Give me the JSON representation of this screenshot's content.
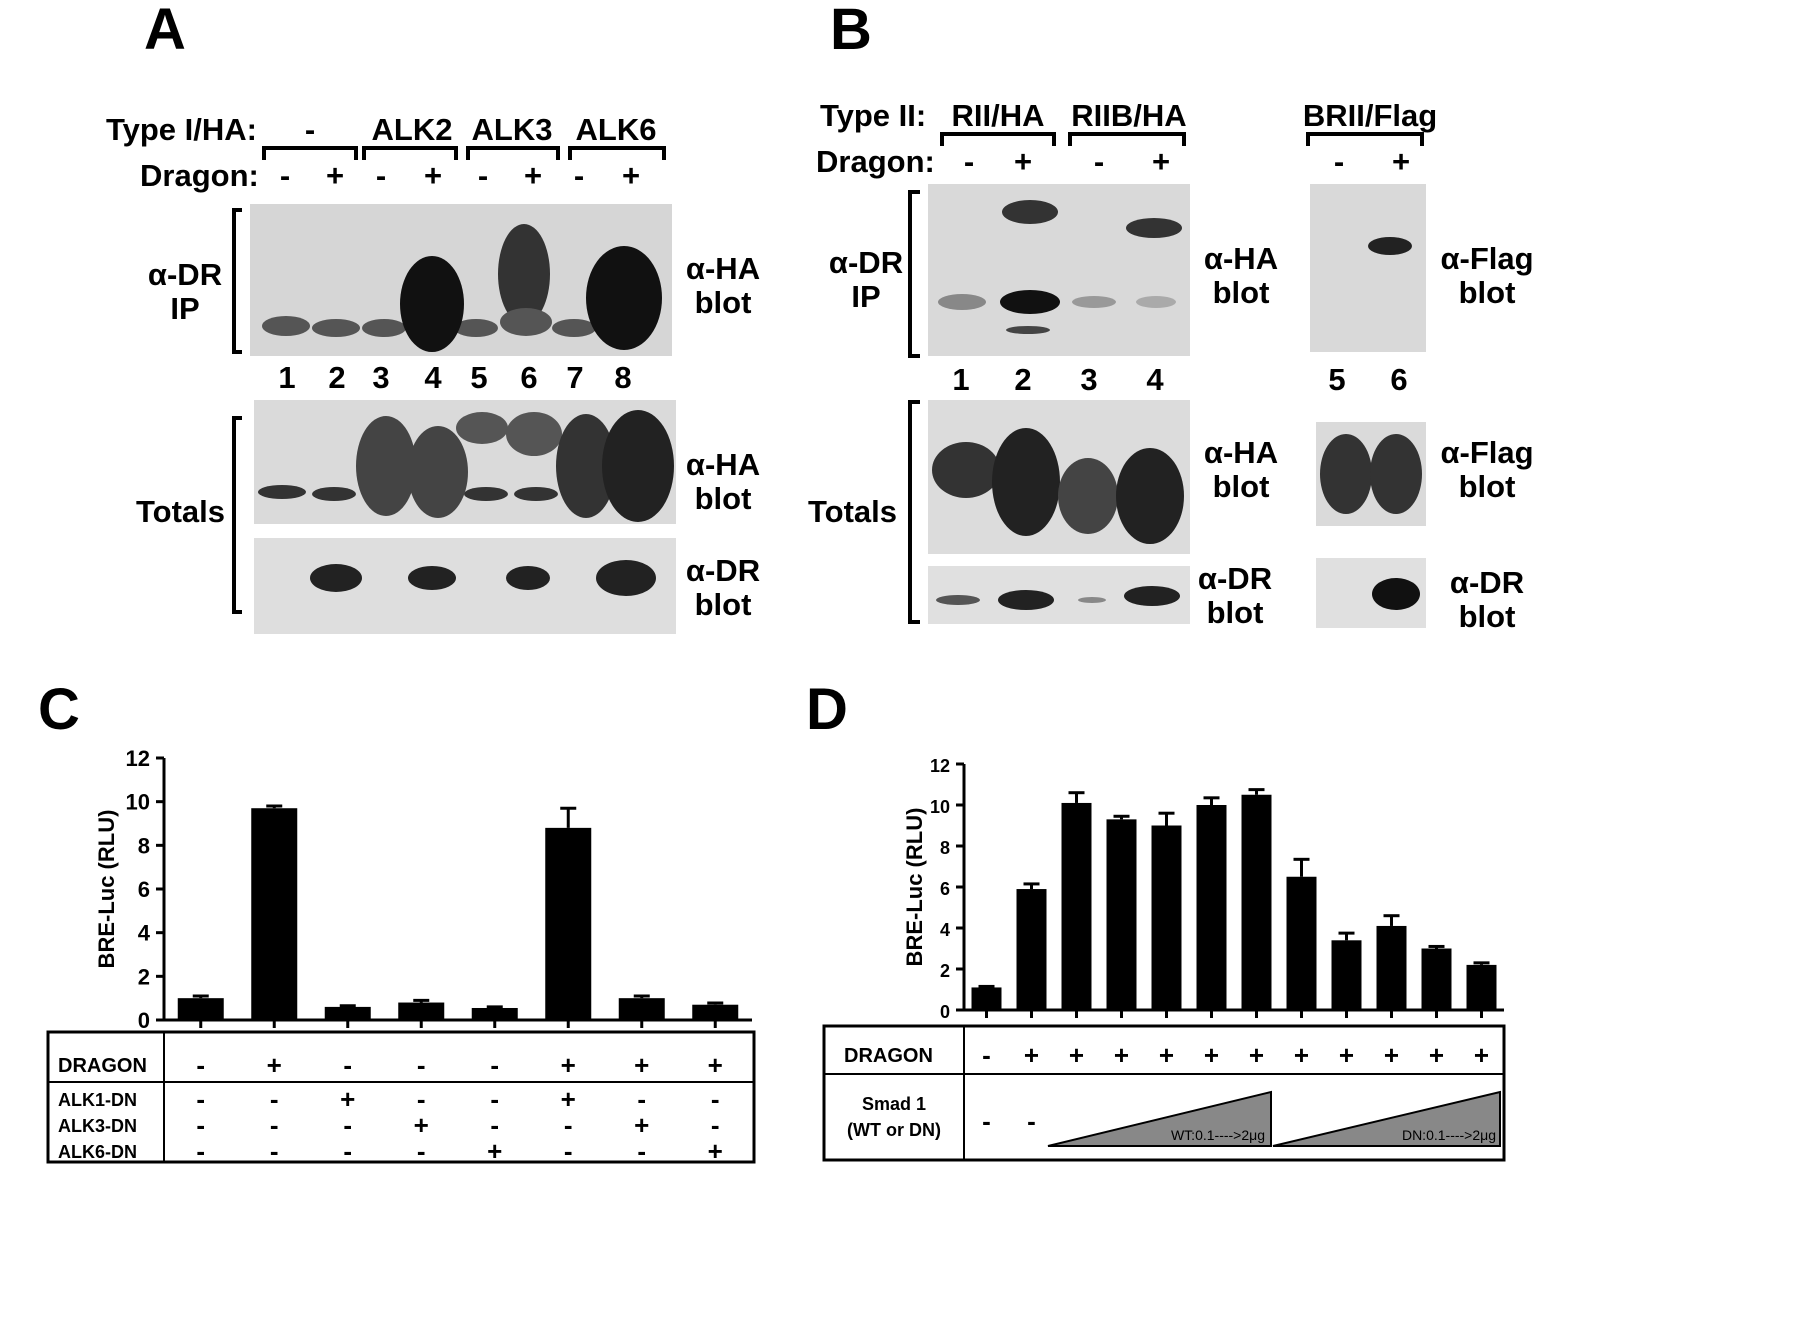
{
  "panels": {
    "A": {
      "letter": "A",
      "type_label": "Type I/HA:",
      "groups": [
        "-",
        "ALK2",
        "ALK3",
        "ALK6"
      ],
      "dragon_label": "Dragon:",
      "dragon_signs": [
        "-",
        "+",
        "-",
        "+",
        "-",
        "+",
        "-",
        "+"
      ],
      "ip_label_1": "α-DR",
      "ip_label_2": "IP",
      "lanes": [
        "1",
        "2",
        "3",
        "4",
        "5",
        "6",
        "7",
        "8"
      ],
      "ha_blot_1": "α-HA",
      "ha_blot_2": "blot",
      "totals": "Totals",
      "tot_ha_1": "α-HA",
      "tot_ha_2": "blot",
      "tot_dr_1": "α-DR",
      "tot_dr_2": "blot"
    },
    "B": {
      "letter": "B",
      "type_label": "Type II:",
      "groups": [
        "RII/HA",
        "RIIB/HA",
        "BRII/Flag"
      ],
      "dragon_label": "Dragon:",
      "dragon_signs": [
        "-",
        "+",
        "-",
        "+",
        "-",
        "+"
      ],
      "ip_label_1": "α-DR",
      "ip_label_2": "IP",
      "lanes": [
        "1",
        "2",
        "3",
        "4",
        "5",
        "6"
      ],
      "ha_blot_1": "α-HA",
      "ha_blot_2": "blot",
      "flag_blot_1": "α-Flag",
      "flag_blot_2": "blot",
      "totals": "Totals",
      "tot_ha_1": "α-HA",
      "tot_ha_2": "blot",
      "tot_flag_1": "α-Flag",
      "tot_flag_2": "blot",
      "tot_dr_1": "α-DR",
      "tot_dr_2": "blot",
      "tot_dr2_1": "α-DR",
      "tot_dr2_2": "blot"
    },
    "C": {
      "letter": "C",
      "table": {
        "rows": [
          {
            "label": "DRAGON",
            "signs": [
              "-",
              "+",
              "-",
              "-",
              "-",
              "+",
              "+",
              "+"
            ]
          },
          {
            "label": "ALK1-DN",
            "signs": [
              "-",
              "-",
              "+",
              "-",
              "-",
              "+",
              "-",
              "-"
            ]
          },
          {
            "label": "ALK3-DN",
            "signs": [
              "-",
              "-",
              "-",
              "+",
              "-",
              "-",
              "+",
              "-"
            ]
          },
          {
            "label": "ALK6-DN",
            "signs": [
              "-",
              "-",
              "-",
              "-",
              "+",
              "-",
              "-",
              "+"
            ]
          }
        ]
      }
    },
    "D": {
      "letter": "D",
      "table": {
        "dragon_label": "DRAGON",
        "dragon_signs": [
          "-",
          "+",
          "+",
          "+",
          "+",
          "+",
          "+",
          "+",
          "+",
          "+",
          "+",
          "+"
        ],
        "smad_label_1": "Smad 1",
        "smad_label_2": "(WT or DN)",
        "smad_signs": [
          "-",
          "-"
        ],
        "wt_ramp": "WT:0.1---->2μg",
        "dn_ramp": "DN:0.1---->2μg"
      }
    }
  },
  "chart_data": [
    {
      "type": "bar",
      "panel": "C",
      "ylabel": "BRE-Luc (RLU)",
      "ylim": [
        0,
        12
      ],
      "yticks": [
        "0",
        "2",
        "4",
        "6",
        "8",
        "10",
        "12"
      ],
      "values": [
        1.0,
        9.7,
        0.6,
        0.8,
        0.55,
        8.8,
        1.0,
        0.7
      ],
      "errors": [
        0.1,
        0.1,
        0.05,
        0.1,
        0.05,
        0.9,
        0.1,
        0.08
      ]
    },
    {
      "type": "bar",
      "panel": "D",
      "ylabel": "BRE-Luc (RLU)",
      "ylim": [
        0,
        12
      ],
      "yticks": [
        "0",
        "2",
        "4",
        "6",
        "8",
        "10",
        "12"
      ],
      "values": [
        1.1,
        5.9,
        10.1,
        9.3,
        9.0,
        10.0,
        10.5,
        6.5,
        3.4,
        4.1,
        3.0,
        2.2
      ],
      "errors": [
        0.05,
        0.25,
        0.5,
        0.15,
        0.6,
        0.35,
        0.25,
        0.85,
        0.35,
        0.5,
        0.1,
        0.1
      ]
    }
  ]
}
